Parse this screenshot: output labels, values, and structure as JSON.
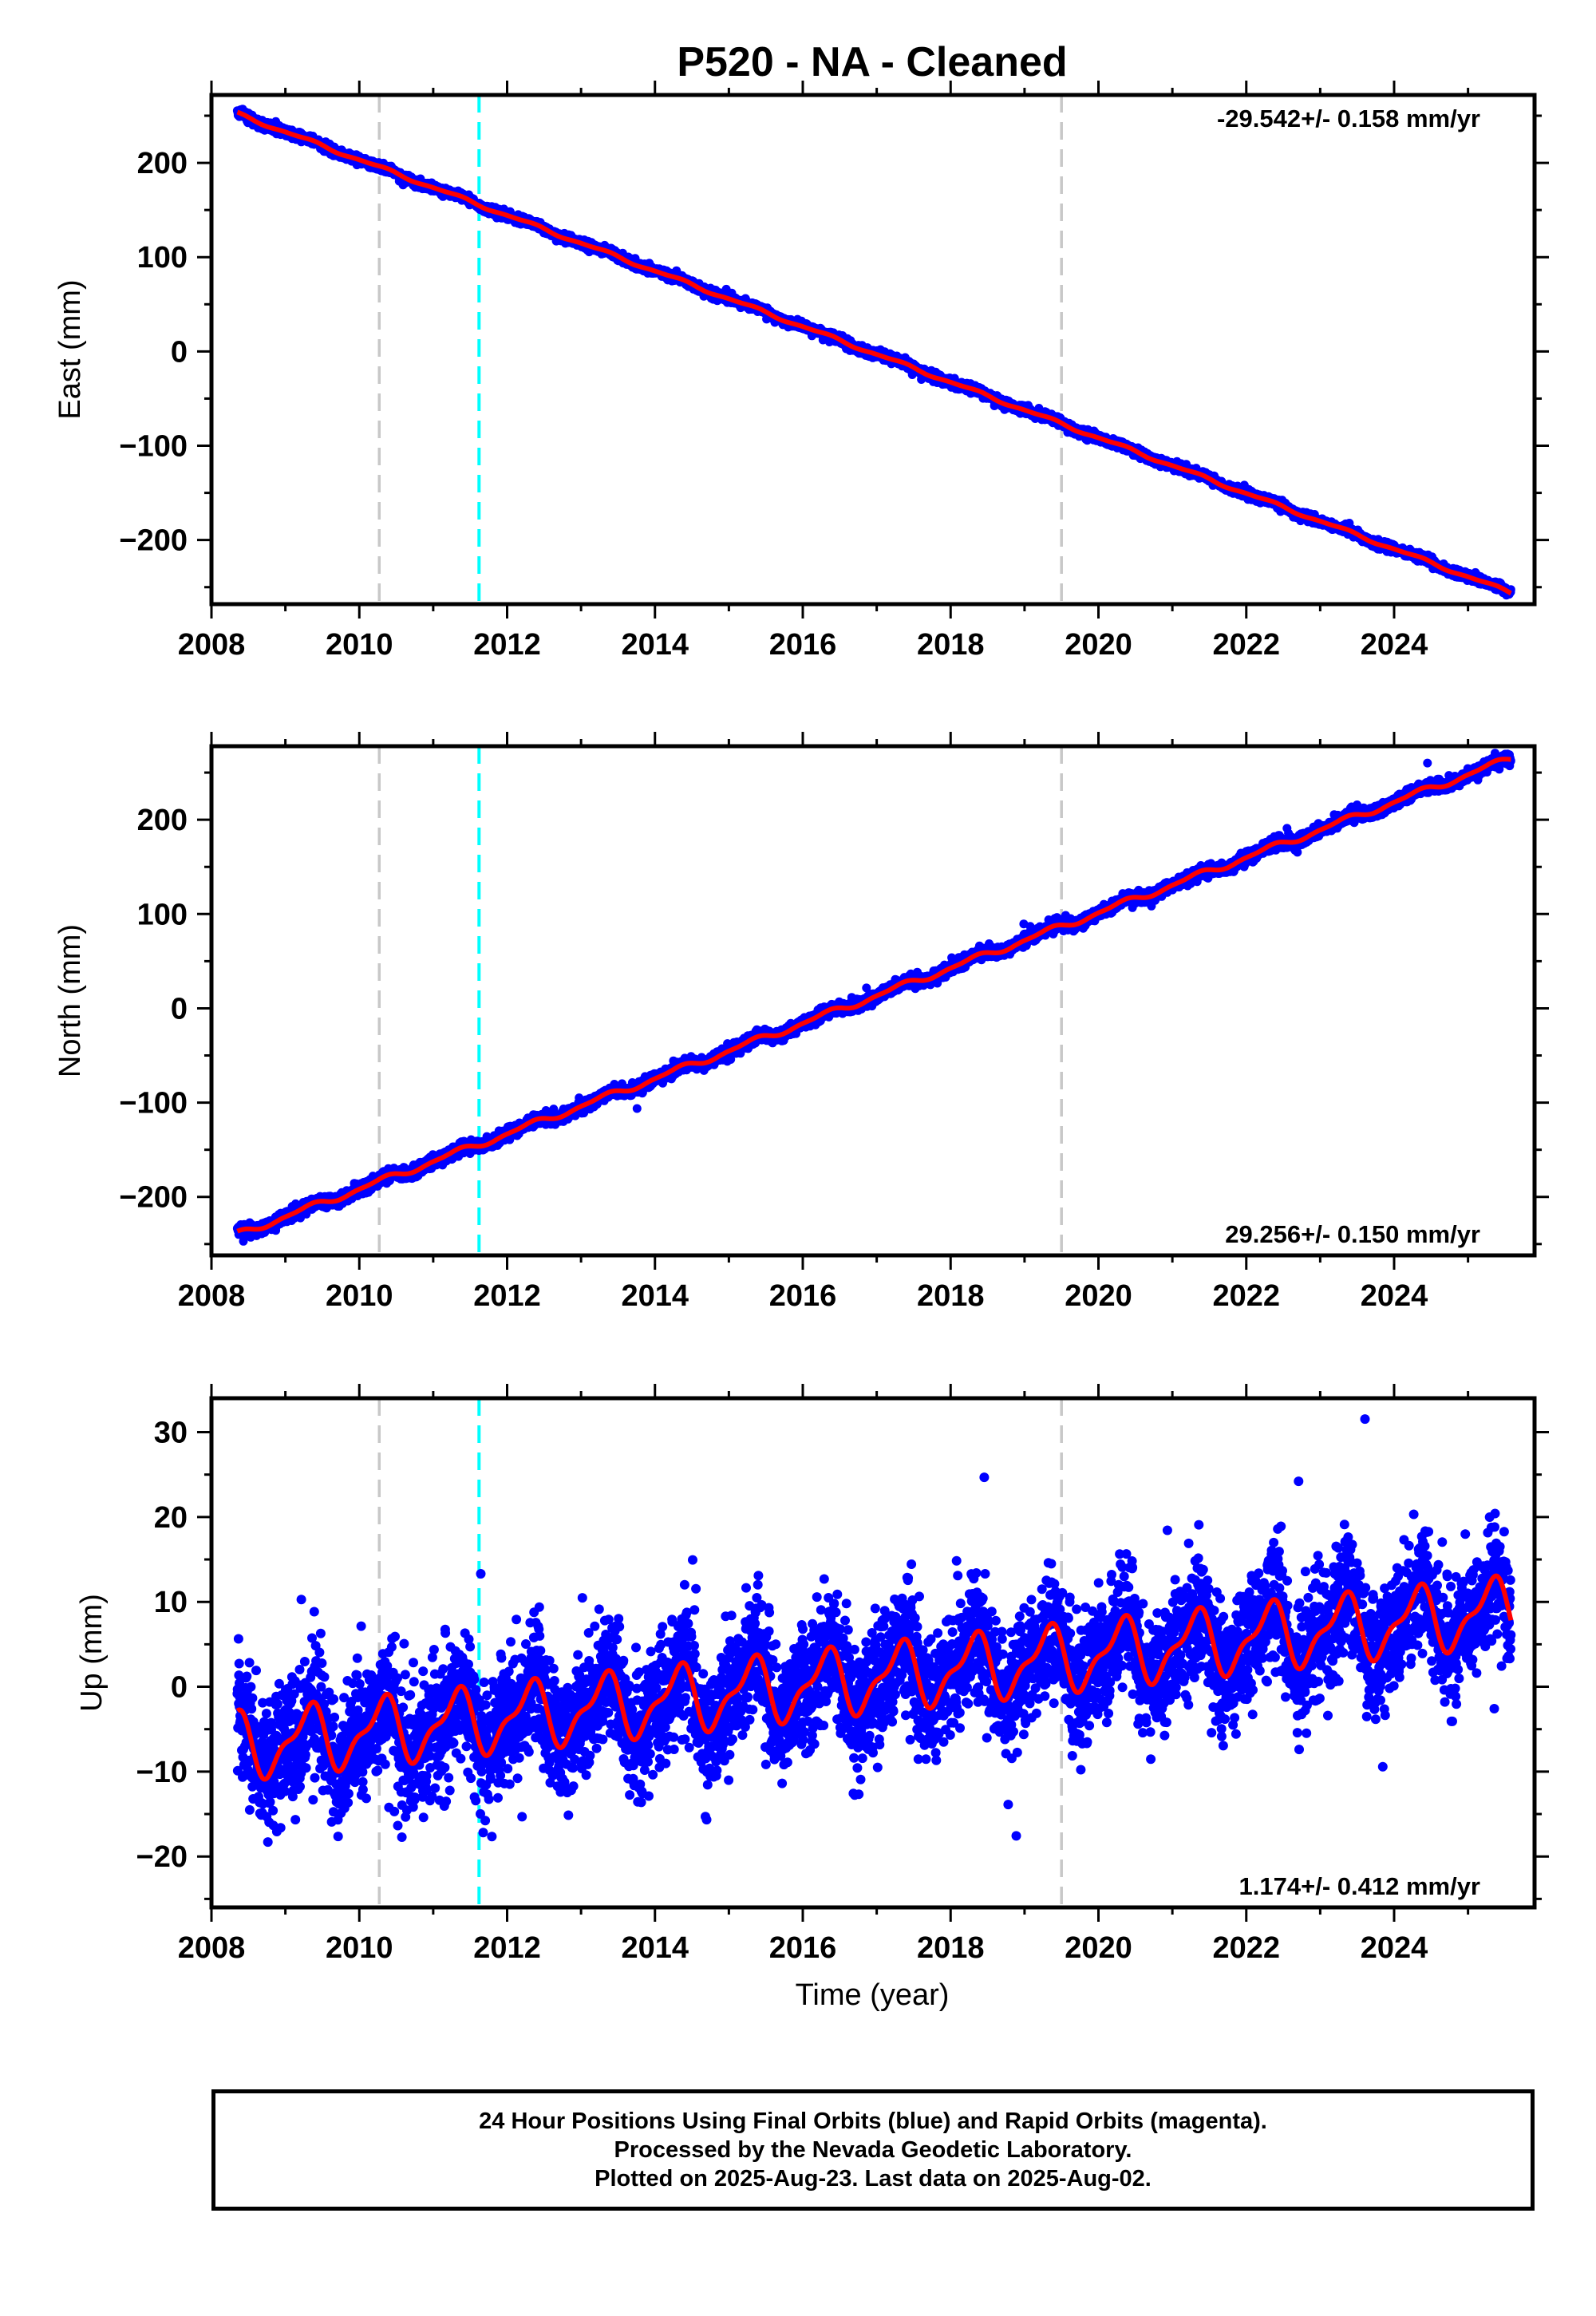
{
  "figure_title": "P520  - NA - Cleaned",
  "xlabel": "Time (year)",
  "colors": {
    "data": "#0000ff",
    "model": "#ff0000",
    "event_gray": "#c8c8c8",
    "event_cyan": "#00ffff",
    "frame": "#000000"
  },
  "x_ticks": [
    "2008",
    "2010",
    "2012",
    "2014",
    "2016",
    "2018",
    "2020",
    "2022",
    "2024"
  ],
  "footer": {
    "line1": "24 Hour Positions Using Final Orbits (blue) and Rapid Orbits (magenta).",
    "line2": "Processed by the Nevada Geodetic Laboratory.",
    "line3": "Plotted on 2025-Aug-23. Last data on 2025-Aug-02."
  },
  "chart_data": [
    {
      "type": "scatter",
      "ylabel": "East (mm)",
      "rate_label": "-29.542+/- 0.158 mm/yr",
      "rate_position": "top-right",
      "xlim": [
        2008.0,
        2025.9
      ],
      "ylim": [
        -268,
        272
      ],
      "y_ticks": [
        200,
        100,
        0,
        -100,
        -200
      ],
      "y_tick_labels": [
        "200",
        "100",
        "0",
        "−100",
        "−200"
      ],
      "event_lines": [
        {
          "x": 2010.27,
          "color": "gray"
        },
        {
          "x": 2011.62,
          "color": "cyan"
        },
        {
          "x": 2019.5,
          "color": "gray"
        }
      ],
      "data_start": 2008.35,
      "data_end": 2025.58,
      "trend": {
        "x0": 2008.35,
        "y0": 252,
        "x1": 2025.58,
        "y1": -256
      },
      "seasonal_amp": 1.5,
      "noise_sd": 2.2,
      "outlier_rate": 0.004,
      "outlier_sd": 5,
      "model_line": true
    },
    {
      "type": "scatter",
      "ylabel": "North (mm)",
      "rate_label": "29.256+/- 0.150 mm/yr",
      "rate_position": "bottom-right",
      "xlim": [
        2008.0,
        2025.9
      ],
      "ylim": [
        -262,
        278
      ],
      "y_ticks": [
        200,
        100,
        0,
        -100,
        -200
      ],
      "y_tick_labels": [
        "200",
        "100",
        "0",
        "−100",
        "−200"
      ],
      "event_lines": [
        {
          "x": 2010.27,
          "color": "gray"
        },
        {
          "x": 2011.62,
          "color": "cyan"
        },
        {
          "x": 2019.5,
          "color": "gray"
        }
      ],
      "data_start": 2008.35,
      "data_end": 2025.58,
      "trend": {
        "x0": 2008.35,
        "y0": -240,
        "x1": 2025.58,
        "y1": 265
      },
      "seasonal_amp": 3,
      "noise_sd": 3,
      "outlier_rate": 0.005,
      "outlier_sd": 9,
      "model_line": true
    },
    {
      "type": "scatter",
      "ylabel": "Up (mm)",
      "rate_label": "1.174+/- 0.412 mm/yr",
      "rate_position": "bottom-right",
      "xlim": [
        2008.0,
        2025.9
      ],
      "ylim": [
        -26,
        34
      ],
      "y_ticks": [
        30,
        20,
        10,
        0,
        -10,
        -20
      ],
      "y_tick_labels": [
        "30",
        "20",
        "10",
        "0",
        "−10",
        "−20"
      ],
      "event_lines": [
        {
          "x": 2010.27,
          "color": "gray"
        },
        {
          "x": 2011.62,
          "color": "cyan"
        },
        {
          "x": 2019.5,
          "color": "gray"
        }
      ],
      "data_start": 2008.35,
      "data_end": 2025.58,
      "trend": {
        "x0": 2008.35,
        "y0": -7.0,
        "x1": 2025.58,
        "y1": 9.0
      },
      "seasonal_amp": 3.5,
      "noise_sd": 3.6,
      "outlier_rate": 0.012,
      "outlier_sd": 9,
      "model_line": true
    }
  ]
}
